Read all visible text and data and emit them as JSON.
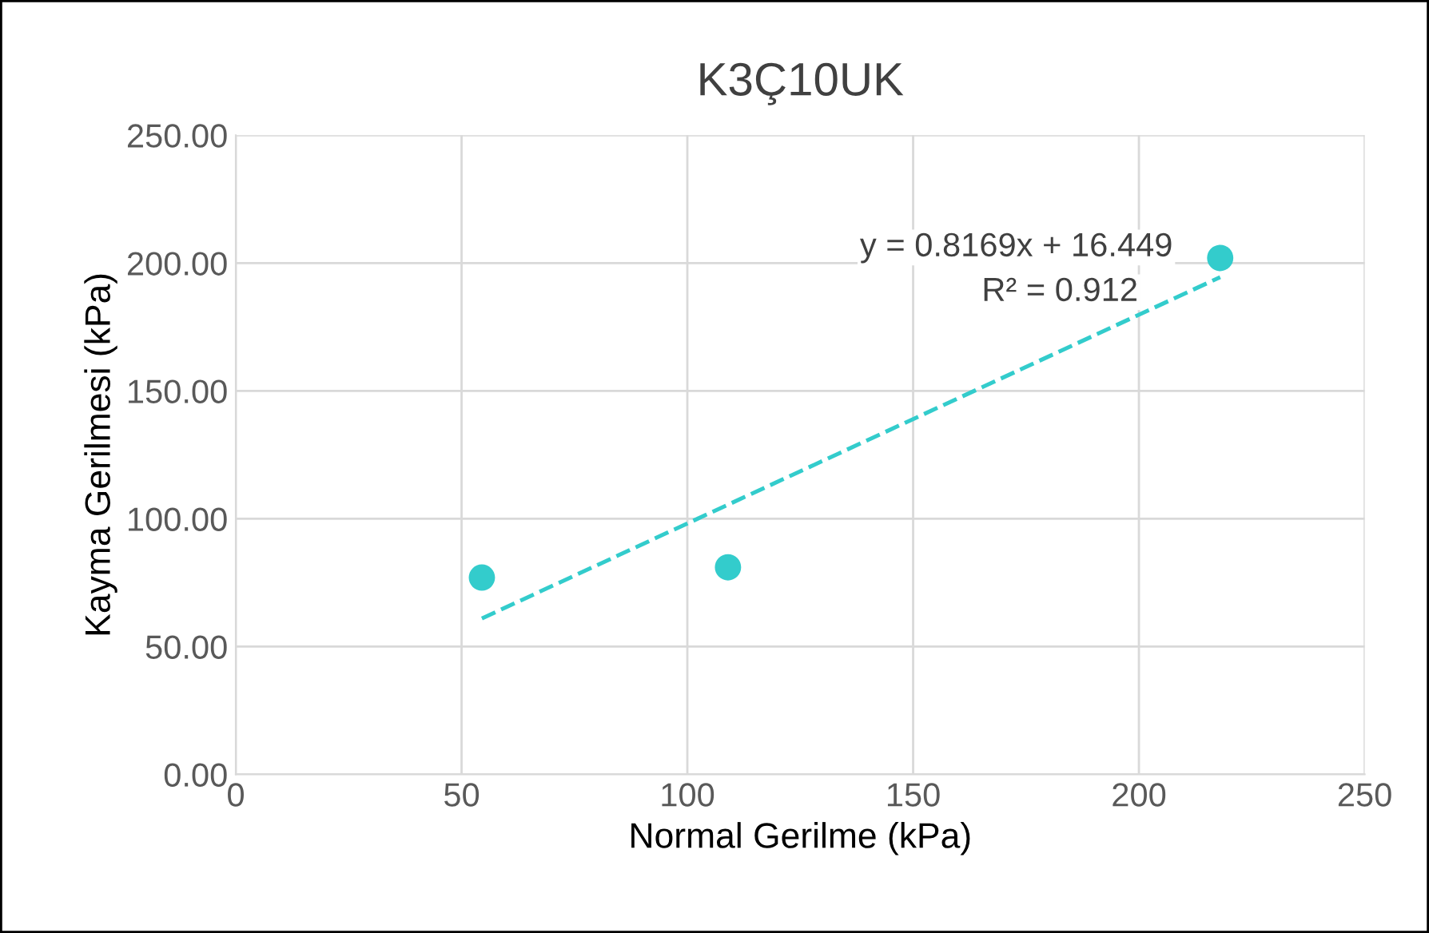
{
  "chart_data": {
    "type": "scatter",
    "title": "K3Ç10UK",
    "xlabel": "Normal Gerilme (kPa)",
    "ylabel": "Kayma Gerilmesi (kPa)",
    "series": [
      {
        "color": "#33cccc",
        "x": [
          54.5,
          109,
          218
        ],
        "values": [
          77,
          81,
          202
        ],
        "marker": "circle"
      },
      {
        "type": "line",
        "color": "#33cccc",
        "x": [
          54.5,
          218
        ],
        "values": [
          61.0,
          194.5
        ],
        "line_style": "dashed",
        "marker": "none"
      }
    ],
    "annotations": [
      "y = 0.8169x + 16.449",
      "R² = 0.912"
    ],
    "xlim": [
      0,
      250
    ],
    "xticks": [
      0,
      50,
      100,
      150,
      200,
      250
    ],
    "ylim": [
      0,
      250
    ],
    "yticks": [
      {
        "value": 0,
        "label": "0.00"
      },
      {
        "value": 50,
        "label": "50.00"
      },
      {
        "value": 100,
        "label": "100.00"
      },
      {
        "value": 150,
        "label": "150.00"
      },
      {
        "value": 200,
        "label": "200.00"
      },
      {
        "value": 250,
        "label": "250.00"
      }
    ],
    "grid": true,
    "legend": false
  }
}
